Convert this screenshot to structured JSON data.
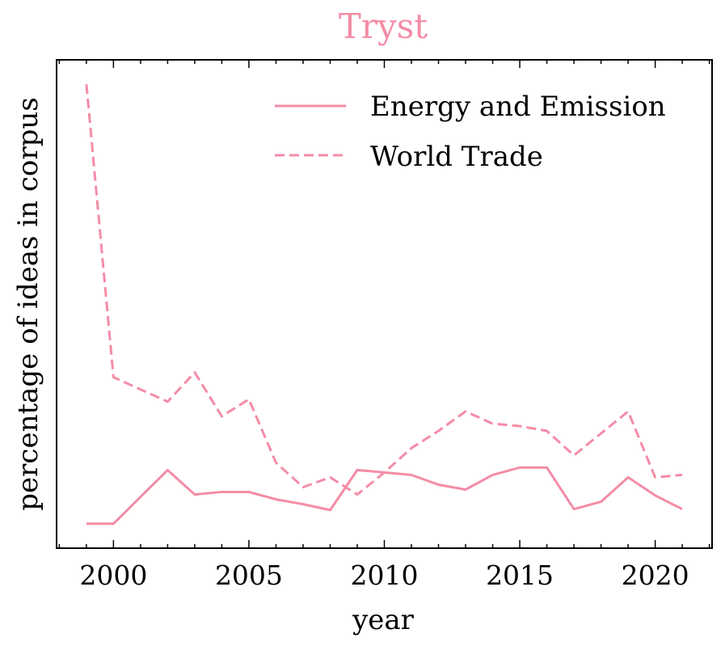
{
  "chart_data": {
    "type": "line",
    "title": "Tryst",
    "xlabel": "year",
    "ylabel": "percentage of ideas in corpus",
    "xlim": [
      1997.9,
      2022.1
    ],
    "ylim": [
      0,
      100
    ],
    "y_ticks_labeled": false,
    "x_ticks": [
      2000,
      2005,
      2010,
      2015,
      2020
    ],
    "x_tick_labels": [
      "2000",
      "2005",
      "2010",
      "2015",
      "2020"
    ],
    "legend_position": "top-right",
    "color": "#f48ca6",
    "series": [
      {
        "name": "Energy and Emission",
        "style": "solid",
        "x": [
          1999,
          2000,
          2001,
          2002,
          2003,
          2004,
          2005,
          2006,
          2007,
          2008,
          2009,
          2010,
          2011,
          2012,
          2013,
          2014,
          2015,
          2016,
          2017,
          2018,
          2019,
          2020,
          2021
        ],
        "values": [
          5,
          5,
          10.5,
          16,
          11,
          11.5,
          11.5,
          10,
          9,
          7.8,
          16,
          15.5,
          15,
          13,
          12,
          15,
          16.5,
          16.5,
          8,
          9.5,
          14.5,
          10.8,
          8
        ]
      },
      {
        "name": "World Trade",
        "style": "dashed",
        "x": [
          1999,
          2000,
          2001,
          2002,
          2003,
          2004,
          2005,
          2006,
          2007,
          2008,
          2009,
          2010,
          2011,
          2012,
          2013,
          2014,
          2015,
          2016,
          2017,
          2018,
          2019,
          2020,
          2021
        ],
        "values": [
          95,
          35,
          32.5,
          30,
          36,
          27,
          30.5,
          17.5,
          12.5,
          14.5,
          11,
          15.5,
          20.5,
          24,
          28,
          25.5,
          25,
          24,
          19,
          23.5,
          28,
          14.5,
          15
        ]
      }
    ]
  }
}
